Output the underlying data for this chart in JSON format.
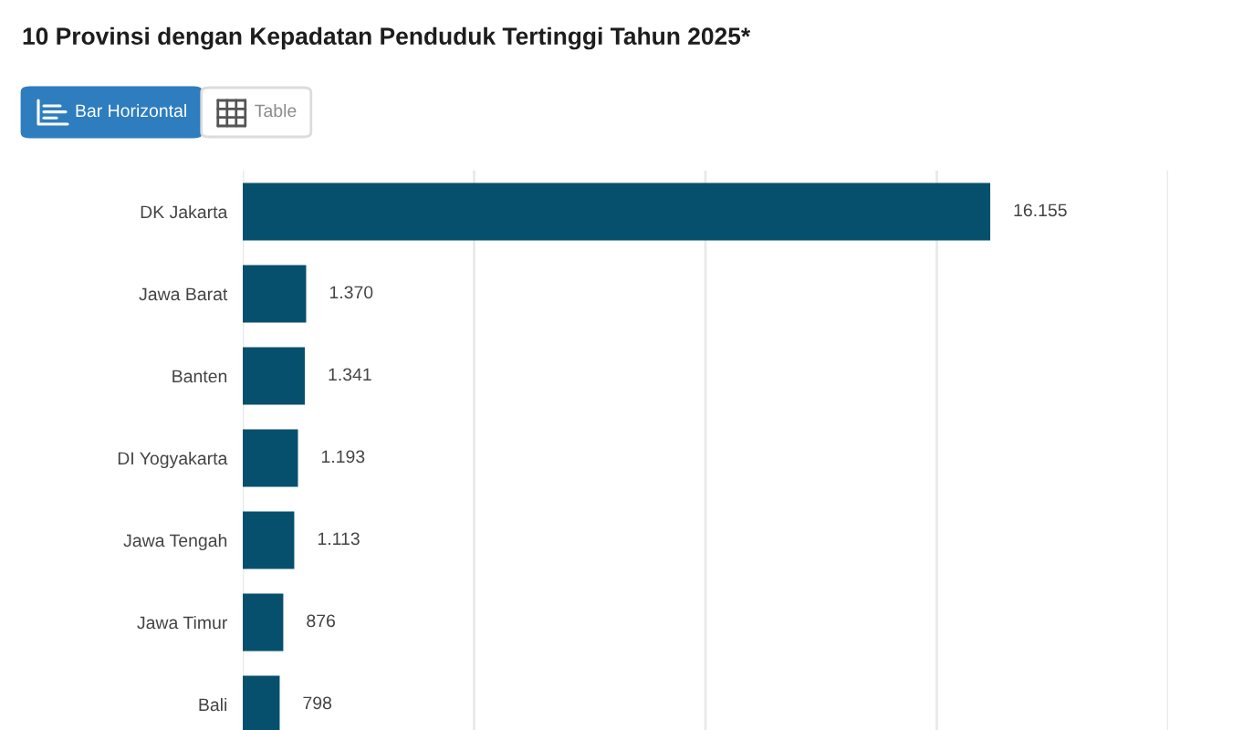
{
  "chart_data": {
    "type": "bar",
    "orientation": "horizontal",
    "title": "10 Provinsi dengan Kepadatan Penduduk Tertinggi Tahun 2025*",
    "annotations": [
      "Bar Horizontal",
      "Table"
    ],
    "categories": [
      "DK Jakarta",
      "Jawa Barat",
      "Banten",
      "DI Yogyakarta",
      "Jawa Tengah",
      "Jawa Timur",
      "Bali"
    ],
    "values": [
      16155,
      1370,
      1341,
      1193,
      1113,
      876,
      798
    ],
    "value_labels": [
      "16.155",
      "1.370",
      "1.341",
      "1.193",
      "1.113",
      "876",
      "798"
    ],
    "color": "#07506d",
    "xlim": [
      0,
      20000
    ],
    "xticks": [
      {
        "value": 0,
        "label": null
      },
      {
        "value": 5000,
        "label": null
      },
      {
        "value": 10000,
        "label": null
      },
      {
        "value": 15000,
        "label": null
      },
      {
        "value": 20000,
        "label": null
      }
    ],
    "grid": "x",
    "tick_labels": "y"
  }
}
